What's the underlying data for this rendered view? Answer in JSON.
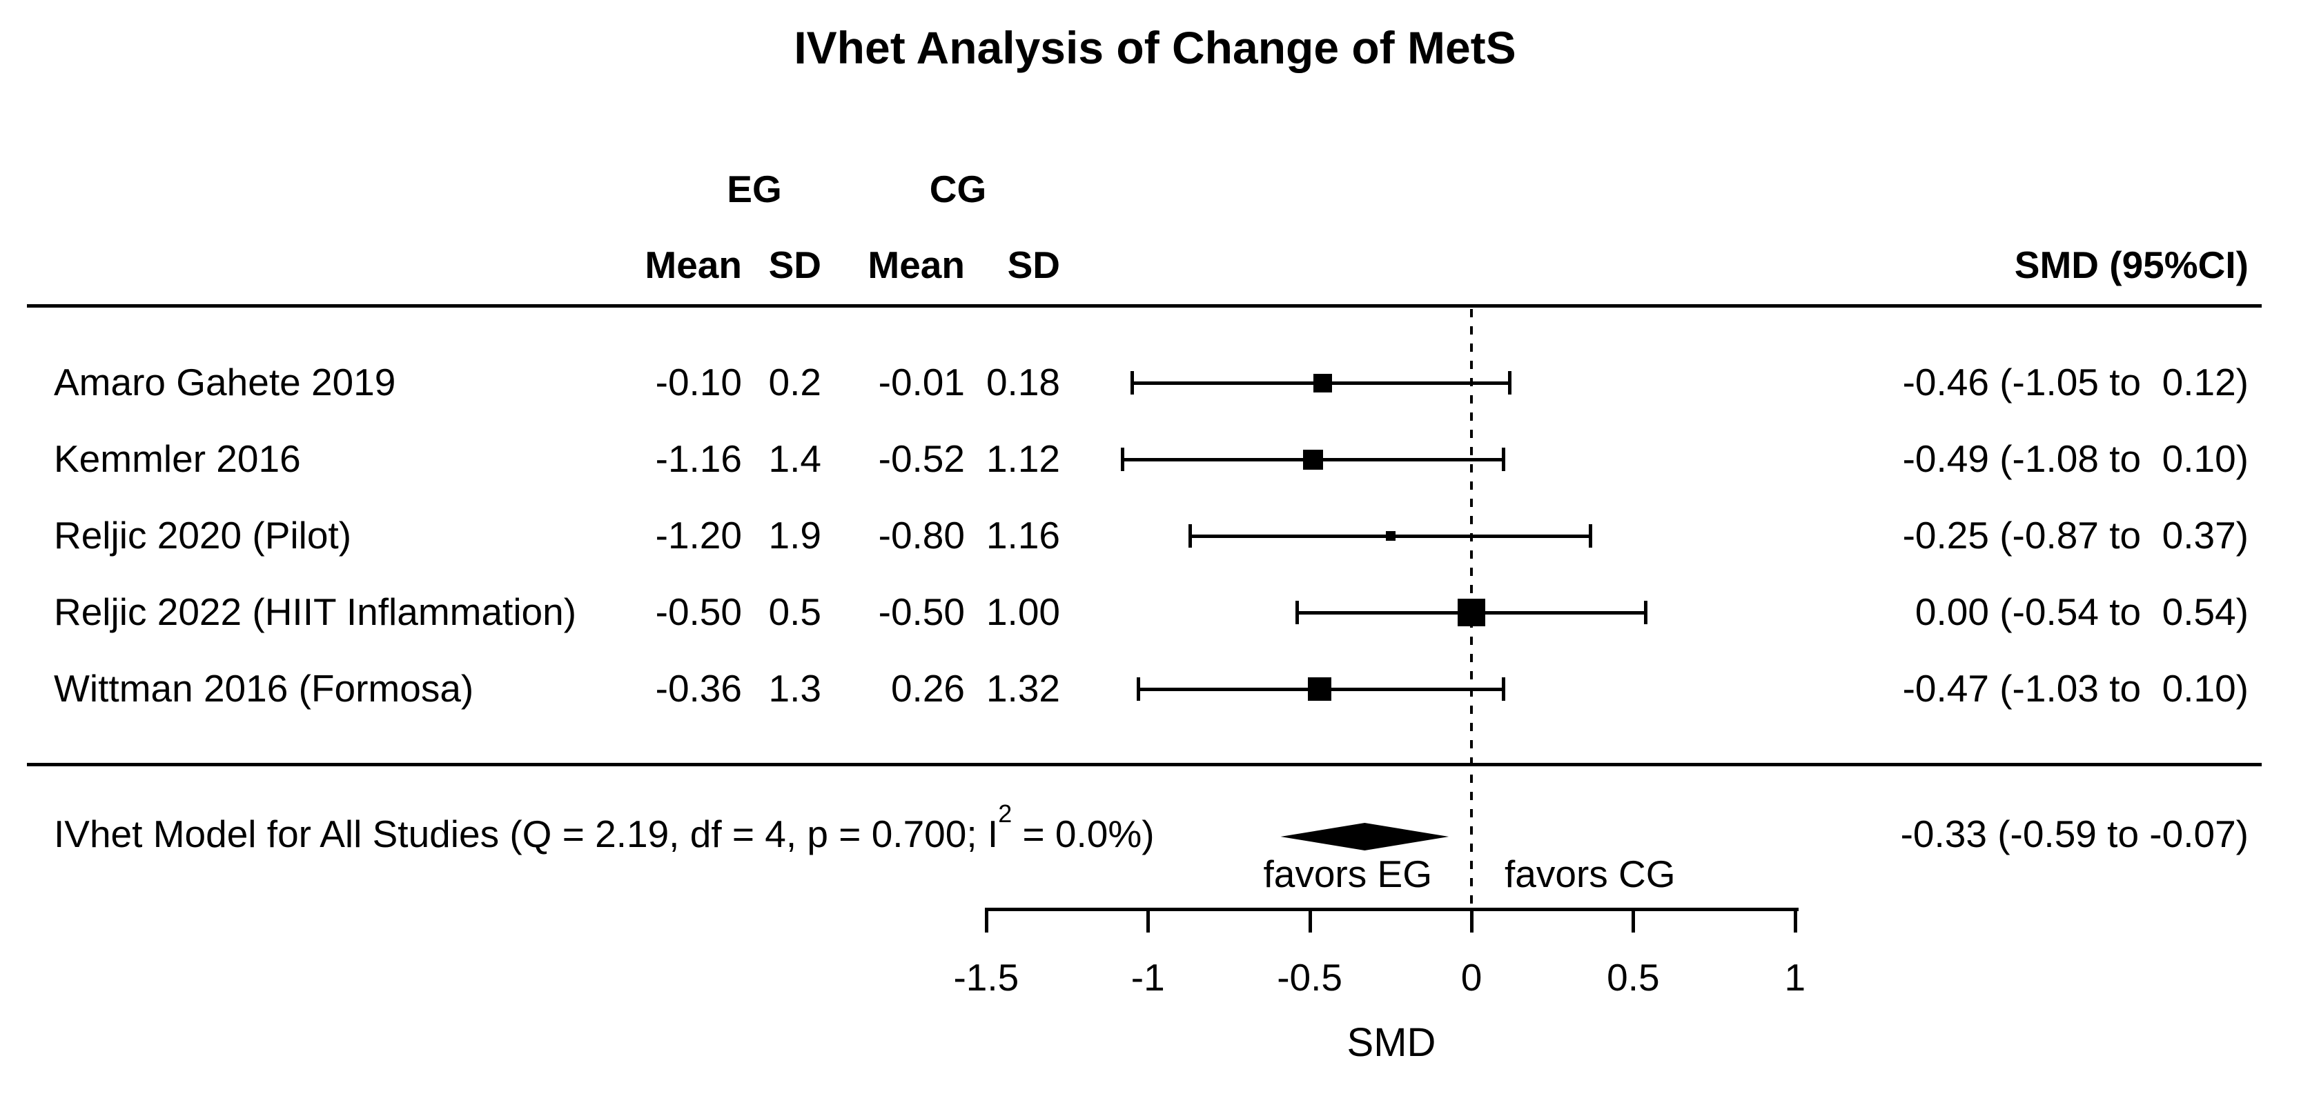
{
  "title": "IVhet Analysis of Change of MetS",
  "columns": {
    "group_left": "EG",
    "group_right": "CG",
    "sub_headers": [
      "Mean",
      "SD",
      "Mean",
      "SD"
    ],
    "effect_header": "SMD (95%CI)"
  },
  "colors": {
    "foreground": "#000000",
    "background": "#ffffff"
  },
  "chart_data": {
    "type": "forest",
    "title": "IVhet Analysis of Change of MetS",
    "xlabel": "SMD",
    "xlim": [
      -1.5,
      1
    ],
    "x_ticks": [
      -1.5,
      -1,
      -0.5,
      0,
      0.5,
      1
    ],
    "x_tick_labels": [
      "-1.5",
      "-1",
      "-0.5",
      "0",
      "0.5",
      "1"
    ],
    "zero_reference_line": 0,
    "favors_left": "favors EG",
    "favors_right": "favors CG",
    "grid": false,
    "studies": [
      {
        "name": "Amaro Gahete 2019",
        "eg_mean": "-0.10",
        "eg_sd": "0.2",
        "cg_mean": "-0.01",
        "cg_sd": "0.18",
        "smd": -0.46,
        "ci_low": -1.05,
        "ci_high": 0.12,
        "effect_label": "-0.46 (-1.05 to  0.12)",
        "marker_px": 27
      },
      {
        "name": "Kemmler 2016",
        "eg_mean": "-1.16",
        "eg_sd": "1.4",
        "cg_mean": "-0.52",
        "cg_sd": "1.12",
        "smd": -0.49,
        "ci_low": -1.08,
        "ci_high": 0.1,
        "effect_label": "-0.49 (-1.08 to  0.10)",
        "marker_px": 29
      },
      {
        "name": "Reljic 2020 (Pilot)",
        "eg_mean": "-1.20",
        "eg_sd": "1.9",
        "cg_mean": "-0.80",
        "cg_sd": "1.16",
        "smd": -0.25,
        "ci_low": -0.87,
        "ci_high": 0.37,
        "effect_label": "-0.25 (-0.87 to  0.37)",
        "marker_px": 14
      },
      {
        "name": "Reljic 2022 (HIIT Inflammation)",
        "eg_mean": "-0.50",
        "eg_sd": "0.5",
        "cg_mean": "-0.50",
        "cg_sd": "1.00",
        "smd": 0.0,
        "ci_low": -0.54,
        "ci_high": 0.54,
        "effect_label": "0.00 (-0.54 to  0.54)",
        "marker_px": 40
      },
      {
        "name": "Wittman 2016 (Formosa)",
        "eg_mean": "-0.36",
        "eg_sd": "1.3",
        "cg_mean": "0.26",
        "cg_sd": "1.32",
        "smd": -0.47,
        "ci_low": -1.03,
        "ci_high": 0.1,
        "effect_label": "-0.47 (-1.03 to  0.10)",
        "marker_px": 34
      }
    ],
    "summary": {
      "label_pre": "IVhet Model for All Studies (Q = 2.19, df = 4, p = 0.700; I",
      "label_sup": "2",
      "label_post": " = 0.0%)",
      "smd": -0.33,
      "ci_low": -0.59,
      "ci_high": -0.07,
      "effect_label": "-0.33 (-0.59 to -0.07)"
    }
  }
}
